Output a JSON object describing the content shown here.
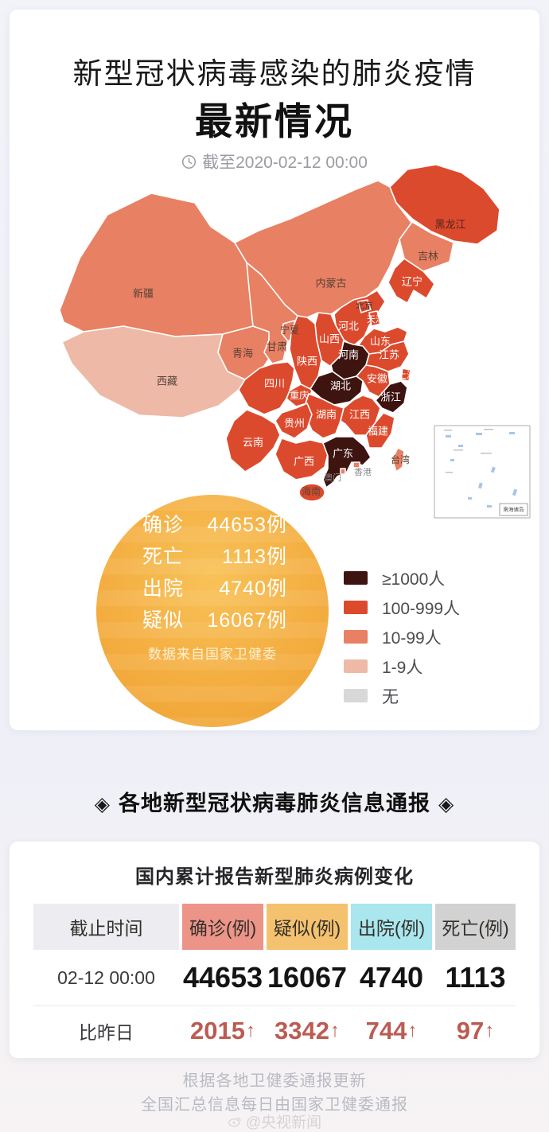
{
  "header": {
    "title_line1": "新型冠状病毒感染的肺炎疫情",
    "title_line2": "最新情况",
    "timestamp": "截至2020-02-12 00:00"
  },
  "stats_circle": {
    "rows": [
      {
        "label": "确诊",
        "value": "44653例"
      },
      {
        "label": "死亡",
        "value": "1113例"
      },
      {
        "label": "出院",
        "value": "4740例"
      },
      {
        "label": "疑似",
        "value": "16067例"
      }
    ],
    "source": "数据来自国家卫健委"
  },
  "legend": {
    "items": [
      {
        "label": "≥1000人",
        "color": "#3e1411"
      },
      {
        "label": "100-999人",
        "color": "#dc4a2d"
      },
      {
        "label": "10-99人",
        "color": "#e88063"
      },
      {
        "label": "1-9人",
        "color": "#eeb9a7"
      },
      {
        "label": "无",
        "color": "#d8d8d8"
      }
    ]
  },
  "section": {
    "decor": "◈",
    "title": "各地新型冠状病毒肺炎信息通报"
  },
  "table_card": {
    "title": "国内累计报告新型肺炎病例变化",
    "headers": [
      {
        "label": "截止时间",
        "color": "#ececf1"
      },
      {
        "label": "确诊(例)",
        "color": "#ec9488"
      },
      {
        "label": "疑似(例)",
        "color": "#f4c26e"
      },
      {
        "label": "出院(例)",
        "color": "#a9e6ed"
      },
      {
        "label": "死亡(例)",
        "color": "#d2d2d2"
      }
    ],
    "rows": [
      {
        "label": "02-12 00:00",
        "values": [
          "44653",
          "16067",
          "4740",
          "1113"
        ]
      },
      {
        "label": "比昨日",
        "values": [
          "2015",
          "3342",
          "744",
          "97"
        ]
      }
    ],
    "change_arrow": "↑",
    "change_color": "#bc5b53"
  },
  "footer": {
    "line1": "根据各地卫健委通报更新",
    "line2": "全国汇总信息每日由国家卫健委通报",
    "credit": "@央视新闻"
  },
  "chart_data": {
    "type": "choropleth_map",
    "title": "新型冠状病毒感染的肺炎疫情最新情况",
    "as_of": "2020-02-12 00:00",
    "totals": {
      "确诊": 44653,
      "死亡": 1113,
      "出院": 4740,
      "疑似": 16067
    },
    "daily_change": {
      "确诊": 2015,
      "疑似": 3342,
      "出院": 744,
      "死亡": 97
    },
    "levels": [
      {
        "label": "≥1000人",
        "color": "#3e1411"
      },
      {
        "label": "100-999人",
        "color": "#dc4a2d"
      },
      {
        "label": "10-99人",
        "color": "#e88063"
      },
      {
        "label": "1-9人",
        "color": "#eeb9a7"
      },
      {
        "label": "无",
        "color": "#d8d8d8"
      }
    ],
    "level_text_colors": {
      "≥1000人": "#ffffff",
      "100-999人": "#ffffff",
      "10-99人": "#5a4237",
      "1-9人": "#5a4237"
    },
    "inset_label": "南海诸岛",
    "provinces": [
      {
        "name": "新疆",
        "level": "10-99人"
      },
      {
        "name": "西藏",
        "level": "1-9人"
      },
      {
        "name": "青海",
        "level": "10-99人"
      },
      {
        "name": "甘肃",
        "level": "10-99人"
      },
      {
        "name": "内蒙古",
        "level": "10-99人"
      },
      {
        "name": "宁夏",
        "level": "10-99人"
      },
      {
        "name": "黑龙江",
        "level": "100-999人"
      },
      {
        "name": "吉林",
        "level": "10-99人"
      },
      {
        "name": "辽宁",
        "level": "100-999人"
      },
      {
        "name": "河北",
        "level": "100-999人"
      },
      {
        "name": "北京",
        "level": "100-999人"
      },
      {
        "name": "天津",
        "level": "100-999人"
      },
      {
        "name": "山西",
        "level": "100-999人"
      },
      {
        "name": "山东",
        "level": "100-999人"
      },
      {
        "name": "陕西",
        "level": "100-999人"
      },
      {
        "name": "河南",
        "level": "≥1000人"
      },
      {
        "name": "江苏",
        "level": "100-999人"
      },
      {
        "name": "安徽",
        "level": "100-999人"
      },
      {
        "name": "上海",
        "level": "100-999人"
      },
      {
        "name": "湖北",
        "level": "≥1000人"
      },
      {
        "name": "浙江",
        "level": "≥1000人"
      },
      {
        "name": "重庆",
        "level": "100-999人"
      },
      {
        "name": "四川",
        "level": "100-999人"
      },
      {
        "name": "湖南",
        "level": "100-999人"
      },
      {
        "name": "江西",
        "level": "100-999人"
      },
      {
        "name": "贵州",
        "level": "100-999人"
      },
      {
        "name": "福建",
        "level": "100-999人"
      },
      {
        "name": "云南",
        "level": "100-999人"
      },
      {
        "name": "广西",
        "level": "100-999人"
      },
      {
        "name": "广东",
        "level": "≥1000人"
      },
      {
        "name": "香港",
        "level": "10-99人"
      },
      {
        "name": "澳门",
        "level": "10-99人"
      },
      {
        "name": "海南",
        "level": "100-999人"
      },
      {
        "name": "台湾",
        "level": "10-99人"
      }
    ]
  }
}
